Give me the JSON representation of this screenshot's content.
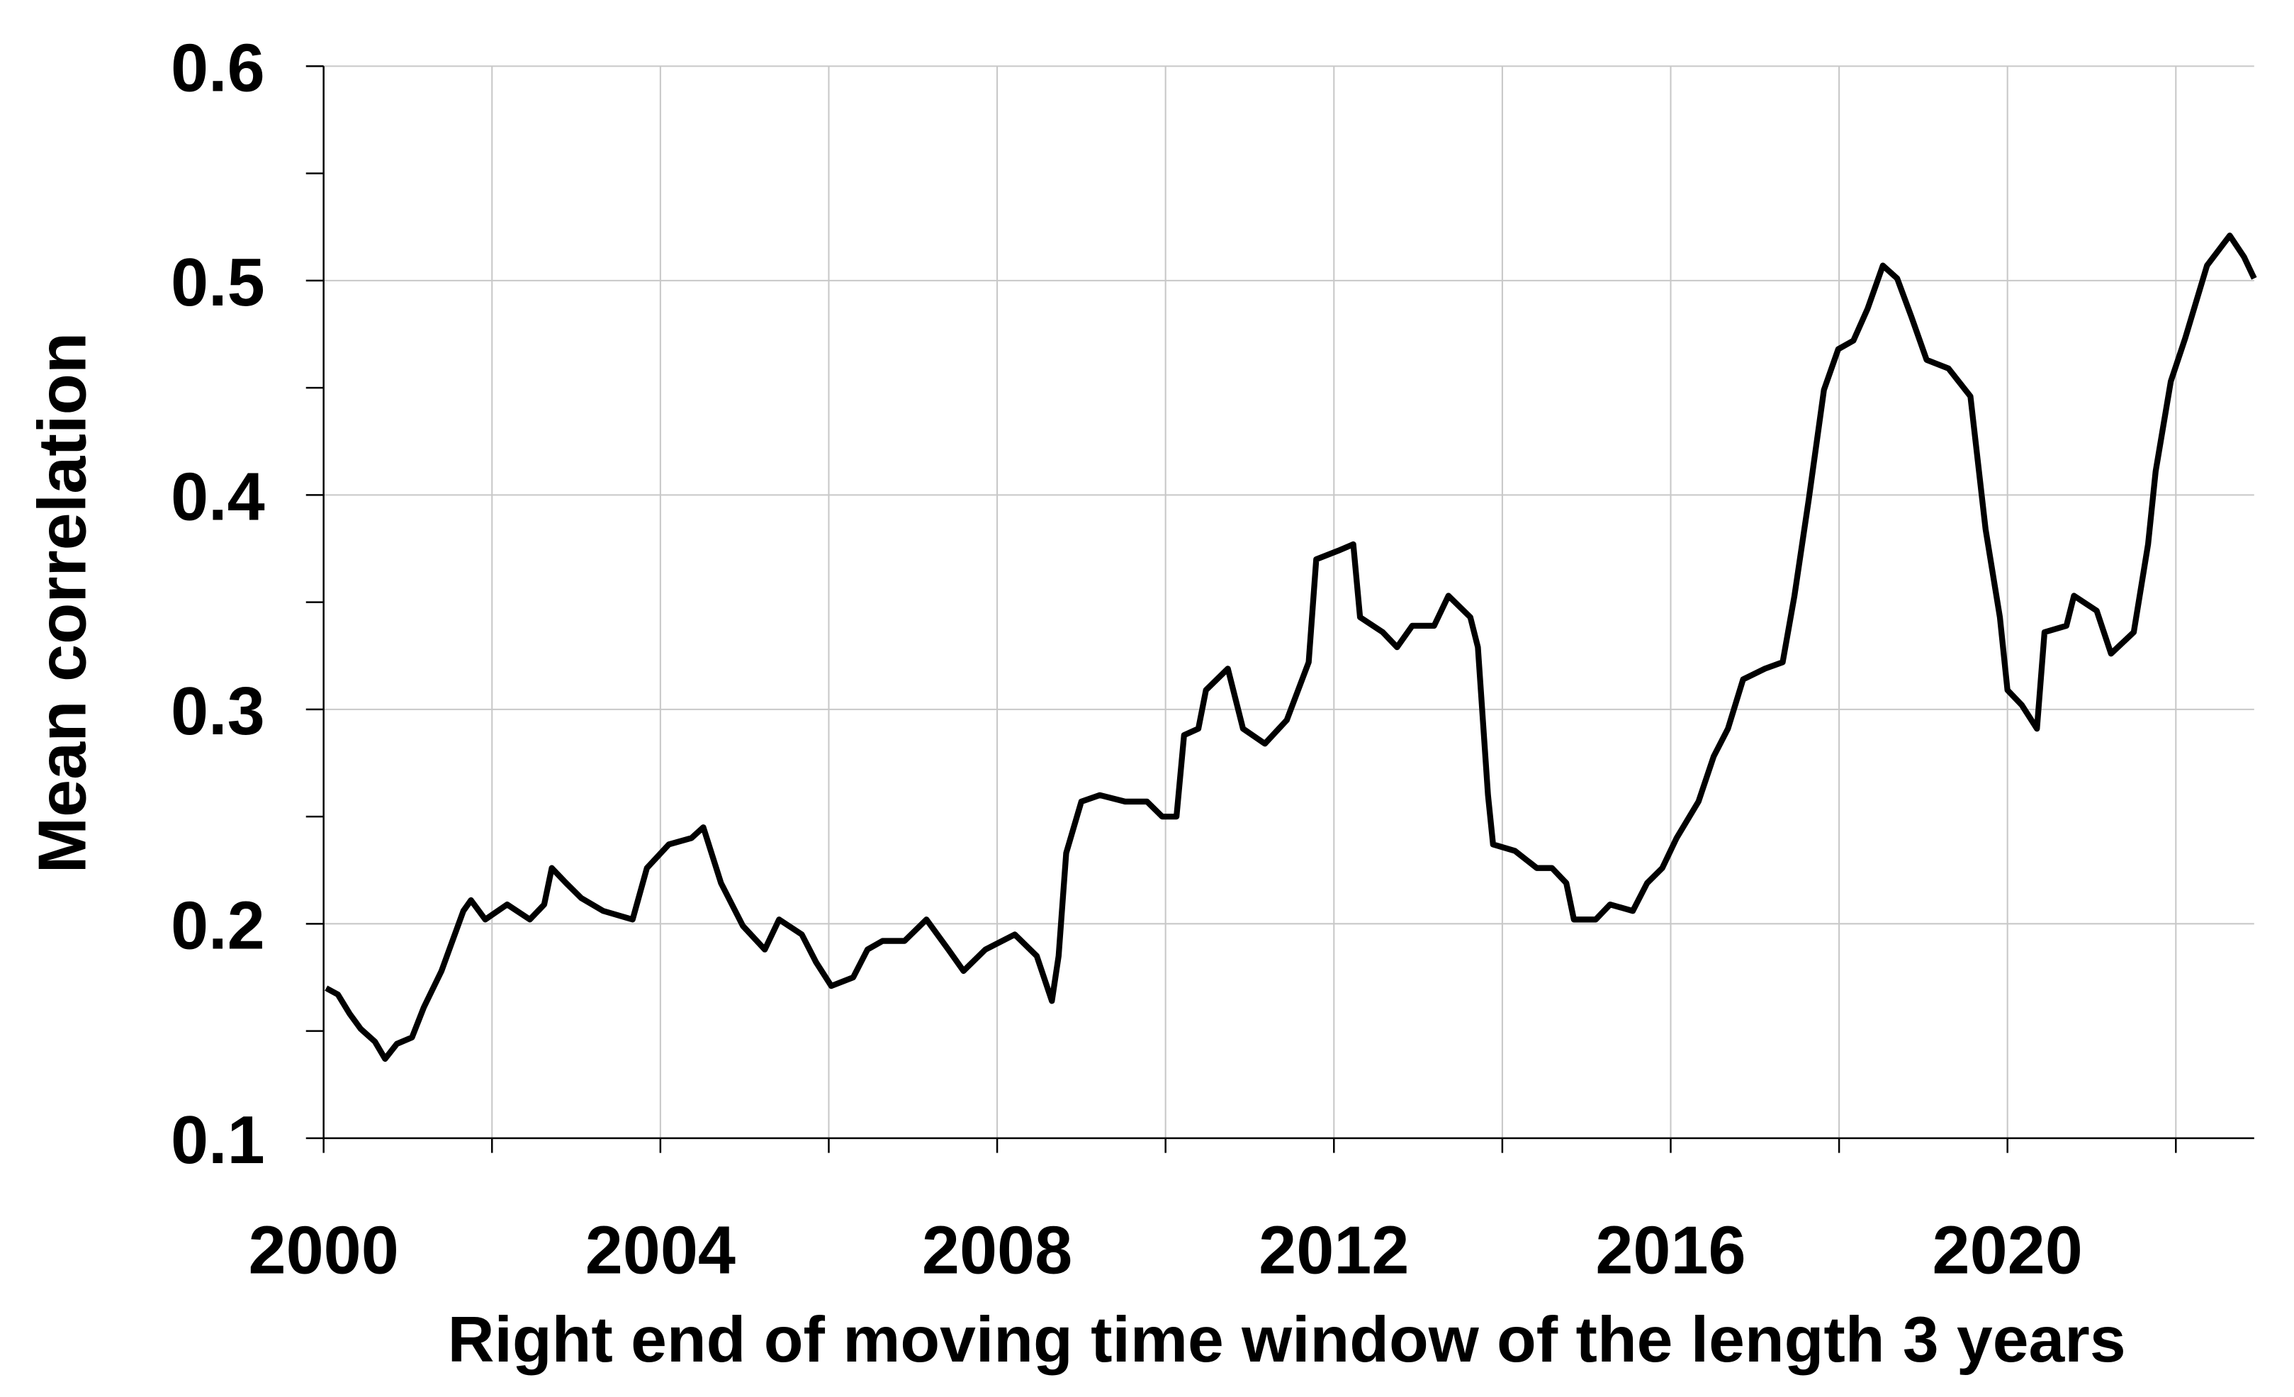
{
  "chart_data": {
    "type": "line",
    "xlabel": "Right end of moving time window of the length 3 years",
    "ylabel": "Mean correlation",
    "x": [
      2000.03,
      2000.17,
      2000.31,
      2000.44,
      2000.61,
      2000.73,
      2000.87,
      2001.05,
      2001.19,
      2001.4,
      2001.66,
      2001.75,
      2001.92,
      2002.18,
      2002.45,
      2002.62,
      2002.71,
      2002.88,
      2003.06,
      2003.32,
      2003.67,
      2003.84,
      2004.1,
      2004.37,
      2004.51,
      2004.72,
      2004.98,
      2005.24,
      2005.41,
      2005.68,
      2005.85,
      2006.03,
      2006.29,
      2006.46,
      2006.64,
      2006.9,
      2007.16,
      2007.42,
      2007.6,
      2007.86,
      2008.21,
      2008.47,
      2008.65,
      2008.73,
      2008.82,
      2009.0,
      2009.22,
      2009.52,
      2009.78,
      2009.96,
      2010.13,
      2010.22,
      2010.39,
      2010.48,
      2010.74,
      2010.92,
      2011.18,
      2011.44,
      2011.7,
      2011.79,
      2012.05,
      2012.23,
      2012.31,
      2012.58,
      2012.75,
      2012.93,
      2013.19,
      2013.36,
      2013.62,
      2013.71,
      2013.83,
      2013.89,
      2014.15,
      2014.41,
      2014.59,
      2014.76,
      2014.85,
      2015.11,
      2015.28,
      2015.55,
      2015.72,
      2015.9,
      2016.07,
      2016.33,
      2016.51,
      2016.68,
      2016.86,
      2017.12,
      2017.33,
      2017.47,
      2017.64,
      2017.82,
      2017.99,
      2018.17,
      2018.34,
      2018.52,
      2018.69,
      2018.86,
      2019.04,
      2019.3,
      2019.56,
      2019.74,
      2019.91,
      2020.0,
      2020.17,
      2020.35,
      2020.44,
      2020.7,
      2020.79,
      2021.06,
      2021.23,
      2021.5,
      2021.67,
      2021.76,
      2021.94,
      2022.11,
      2022.37,
      2022.64,
      2022.81,
      2022.93
    ],
    "series": [
      {
        "color": "#000000",
        "values": [
          0.17,
          0.167,
          0.158,
          0.151,
          0.145,
          0.137,
          0.144,
          0.147,
          0.161,
          0.178,
          0.206,
          0.211,
          0.202,
          0.209,
          0.202,
          0.209,
          0.226,
          0.219,
          0.212,
          0.206,
          0.202,
          0.226,
          0.237,
          0.24,
          0.245,
          0.219,
          0.199,
          0.188,
          0.202,
          0.195,
          0.182,
          0.171,
          0.175,
          0.188,
          0.192,
          0.192,
          0.202,
          0.188,
          0.178,
          0.188,
          0.195,
          0.185,
          0.164,
          0.185,
          0.233,
          0.257,
          0.26,
          0.257,
          0.257,
          0.25,
          0.25,
          0.288,
          0.291,
          0.309,
          0.319,
          0.291,
          0.284,
          0.295,
          0.322,
          0.37,
          0.374,
          0.377,
          0.343,
          0.336,
          0.329,
          0.339,
          0.339,
          0.353,
          0.343,
          0.329,
          0.26,
          0.237,
          0.234,
          0.226,
          0.226,
          0.219,
          0.202,
          0.202,
          0.209,
          0.206,
          0.219,
          0.226,
          0.24,
          0.257,
          0.278,
          0.291,
          0.314,
          0.319,
          0.322,
          0.353,
          0.398,
          0.449,
          0.468,
          0.472,
          0.487,
          0.507,
          0.501,
          0.483,
          0.463,
          0.459,
          0.446,
          0.384,
          0.343,
          0.309,
          0.302,
          0.291,
          0.336,
          0.339,
          0.353,
          0.346,
          0.326,
          0.336,
          0.377,
          0.411,
          0.453,
          0.473,
          0.507,
          0.521,
          0.511,
          0.501
        ]
      }
    ],
    "xlim": [
      2000,
      2022.93
    ],
    "ylim": [
      0.1,
      0.6
    ],
    "xticks": [
      2000,
      2004,
      2008,
      2012,
      2016,
      2020
    ],
    "x_minor_ticks": [
      2002,
      2006,
      2010,
      2014,
      2018,
      2022
    ],
    "yticks": [
      0.1,
      0.2,
      0.3,
      0.4,
      0.5,
      0.6
    ],
    "y_minor_ticks": [
      0.15,
      0.25,
      0.35,
      0.45,
      0.55
    ],
    "grid": true
  }
}
